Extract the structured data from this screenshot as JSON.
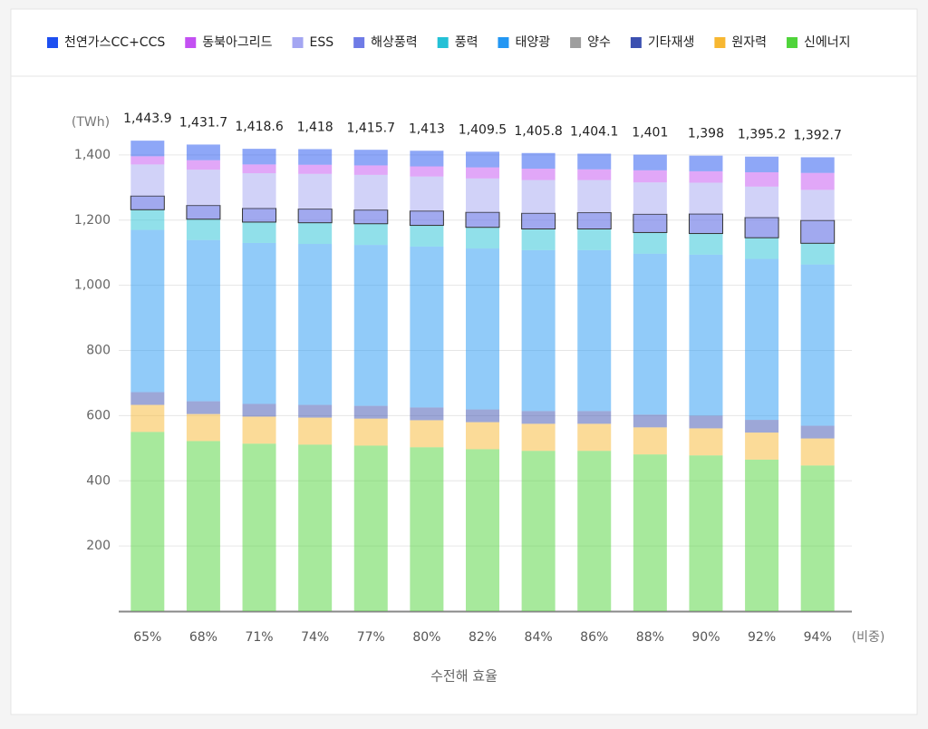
{
  "chart_data": {
    "type": "stacked_bar",
    "y_unit": "(TWh)",
    "x_unit": "(비중)",
    "x_label": "수전해 효율",
    "categories": [
      "65%",
      "68%",
      "71%",
      "74%",
      "77%",
      "80%",
      "82%",
      "84%",
      "86%",
      "88%",
      "90%",
      "92%",
      "94%"
    ],
    "series": [
      {
        "name": "천연가스CC+CCS",
        "color": "#1d4ff0",
        "values": [
          48,
          48,
          48,
          48,
          48,
          48,
          48,
          48,
          48,
          48,
          48,
          48,
          48
        ]
      },
      {
        "name": "동북아그리드",
        "color": "#c350f2",
        "values": [
          25,
          29,
          27,
          28,
          29,
          31,
          34,
          35,
          33,
          37,
          35,
          44,
          52
        ]
      },
      {
        "name": "ESS",
        "color": "#a4a6f2",
        "values": [
          97,
          110,
          108,
          108,
          108,
          106,
          104,
          102,
          100,
          98,
          96,
          95,
          94
        ]
      },
      {
        "name": "해상풍력",
        "color": "#6f7be6",
        "values": [
          42,
          42,
          42,
          42,
          42,
          44,
          46,
          48,
          50,
          56,
          60,
          62,
          70
        ]
      },
      {
        "name": "풍력",
        "color": "#24c1d6",
        "values": [
          62,
          64,
          64,
          65,
          65,
          65,
          65,
          65,
          65,
          65,
          65,
          65,
          65
        ]
      },
      {
        "name": "태양광",
        "color": "#2397f3",
        "values": [
          498,
          495,
          494,
          494,
          494,
          494,
          494,
          494,
          494,
          494,
          494,
          494,
          495
        ]
      },
      {
        "name": "양수",
        "color": "#9e9e9e",
        "values": [
          0,
          0,
          0,
          0,
          0,
          0,
          0,
          0,
          0,
          0,
          0,
          0,
          0
        ]
      },
      {
        "name": "기타재생",
        "color": "#3b50b0",
        "values": [
          39,
          39,
          39,
          39,
          39,
          39,
          39,
          39,
          39,
          39,
          39,
          39,
          39
        ]
      },
      {
        "name": "원자력",
        "color": "#f7b731",
        "values": [
          83,
          83,
          83,
          83,
          83,
          83,
          83,
          83,
          83,
          83,
          83,
          83,
          83
        ]
      },
      {
        "name": "신에너지",
        "color": "#4fd43a",
        "values": [
          550,
          522,
          514,
          511,
          508,
          503,
          497,
          492,
          492,
          481,
          478,
          465,
          447
        ]
      }
    ],
    "totals": [
      1443.9,
      1431.7,
      1418.6,
      1418,
      1415.7,
      1413,
      1409.5,
      1405.8,
      1404.1,
      1401,
      1398,
      1395.2,
      1392.7
    ],
    "total_labels": [
      "1,443.9",
      "1,431.7",
      "1,418.6",
      "1,418",
      "1,415.7",
      "1,413",
      "1,409.5",
      "1,405.8",
      "1,404.1",
      "1,401",
      "1,398",
      "1,395.2",
      "1,392.7"
    ],
    "ylim": [
      0,
      1500
    ],
    "yticks": [
      200,
      400,
      600,
      800,
      {
        "value": 1000,
        "label": "1,000"
      },
      {
        "value": 1200,
        "label": "1,200"
      },
      {
        "value": 1400,
        "label": "1,400"
      }
    ],
    "grid": true
  }
}
